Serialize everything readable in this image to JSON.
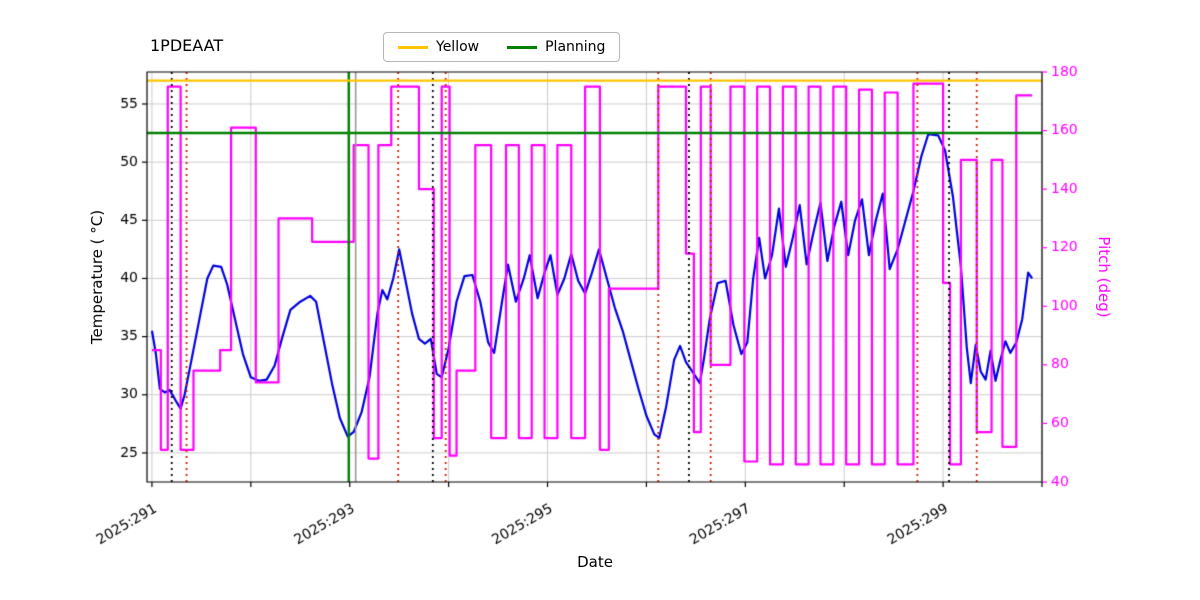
{
  "title": "1PDEAAT",
  "legend": {
    "items": [
      {
        "label": "Yellow",
        "color": "#ffc400"
      },
      {
        "label": "Planning",
        "color": "#008000"
      }
    ]
  },
  "axes": {
    "xlabel": "Date",
    "ylabel_left": "Temperature ( °C)",
    "ylabel_right": "Pitch (deg)"
  },
  "chart_data": {
    "type": "line",
    "title": "1PDEAAT",
    "x_range": [
      290.95,
      300.0
    ],
    "xticks": [
      {
        "value": 291,
        "label": "2025:291"
      },
      {
        "value": 293,
        "label": "2025:293"
      },
      {
        "value": 295,
        "label": "2025:295"
      },
      {
        "value": 297,
        "label": "2025:297"
      },
      {
        "value": 299,
        "label": "2025:299"
      }
    ],
    "x_grid_step": 1,
    "left_axis": {
      "label": "Temperature ( °C)",
      "range": [
        22.5,
        57.75
      ],
      "ticks": [
        25,
        30,
        35,
        40,
        45,
        50,
        55
      ],
      "color": "#000000"
    },
    "right_axis": {
      "label": "Pitch (deg)",
      "range": [
        40,
        180
      ],
      "ticks": [
        40,
        60,
        80,
        100,
        120,
        140,
        160,
        180
      ],
      "color": "#ff00ff"
    },
    "grid_color": "#cccccc",
    "hlines": [
      {
        "y": 57.0,
        "axis": "left",
        "color": "#ffc400",
        "width": 2.2,
        "label": "Yellow"
      },
      {
        "y": 52.5,
        "axis": "left",
        "color": "#008000",
        "width": 2.6,
        "label": "Planning"
      }
    ],
    "vlines": [
      {
        "x": 291.2,
        "color": "#000000",
        "style": "dotted",
        "width": 1.8
      },
      {
        "x": 291.35,
        "color": "#cc2200",
        "style": "dotted",
        "width": 1.8
      },
      {
        "x": 292.99,
        "color": "#008000",
        "style": "solid",
        "width": 2.4
      },
      {
        "x": 293.06,
        "color": "#999999",
        "style": "solid",
        "width": 1.6
      },
      {
        "x": 293.49,
        "color": "#cc2200",
        "style": "dotted",
        "width": 1.8
      },
      {
        "x": 293.84,
        "color": "#000000",
        "style": "dotted",
        "width": 1.8
      },
      {
        "x": 293.97,
        "color": "#cc2200",
        "style": "dotted",
        "width": 1.8
      },
      {
        "x": 296.12,
        "color": "#cc2200",
        "style": "dotted",
        "width": 1.8
      },
      {
        "x": 296.43,
        "color": "#000000",
        "style": "dotted",
        "width": 1.8
      },
      {
        "x": 296.65,
        "color": "#cc2200",
        "style": "dotted",
        "width": 1.8
      },
      {
        "x": 298.74,
        "color": "#cc2200",
        "style": "dotted",
        "width": 1.8
      },
      {
        "x": 299.06,
        "color": "#000000",
        "style": "dotted",
        "width": 1.8
      },
      {
        "x": 299.34,
        "color": "#cc2200",
        "style": "dotted",
        "width": 1.8
      }
    ],
    "series": [
      {
        "name": "Temperature",
        "axis": "left",
        "color": "#0000e0",
        "width": 2.2,
        "points": [
          [
            291.0,
            35.5
          ],
          [
            291.04,
            33.5
          ],
          [
            291.08,
            30.5
          ],
          [
            291.13,
            30.2
          ],
          [
            291.18,
            30.4
          ],
          [
            291.24,
            29.5
          ],
          [
            291.29,
            28.8
          ],
          [
            291.33,
            30.0
          ],
          [
            291.4,
            33.0
          ],
          [
            291.48,
            36.5
          ],
          [
            291.56,
            40.0
          ],
          [
            291.62,
            41.1
          ],
          [
            291.7,
            41.0
          ],
          [
            291.76,
            39.5
          ],
          [
            291.84,
            36.5
          ],
          [
            291.92,
            33.5
          ],
          [
            292.0,
            31.5
          ],
          [
            292.08,
            31.2
          ],
          [
            292.16,
            31.3
          ],
          [
            292.24,
            32.5
          ],
          [
            292.32,
            35.0
          ],
          [
            292.4,
            37.3
          ],
          [
            292.5,
            38.0
          ],
          [
            292.6,
            38.5
          ],
          [
            292.66,
            38.0
          ],
          [
            292.74,
            34.5
          ],
          [
            292.82,
            31.0
          ],
          [
            292.9,
            28.0
          ],
          [
            292.98,
            26.4
          ],
          [
            293.04,
            26.8
          ],
          [
            293.12,
            28.5
          ],
          [
            293.2,
            31.5
          ],
          [
            293.28,
            37.0
          ],
          [
            293.33,
            39.0
          ],
          [
            293.38,
            38.2
          ],
          [
            293.44,
            40.0
          ],
          [
            293.5,
            42.5
          ],
          [
            293.56,
            40.0
          ],
          [
            293.63,
            37.0
          ],
          [
            293.7,
            34.8
          ],
          [
            293.76,
            34.4
          ],
          [
            293.82,
            34.8
          ],
          [
            293.88,
            31.8
          ],
          [
            293.93,
            31.5
          ],
          [
            294.0,
            34.0
          ],
          [
            294.08,
            38.0
          ],
          [
            294.16,
            40.2
          ],
          [
            294.24,
            40.3
          ],
          [
            294.32,
            38.0
          ],
          [
            294.4,
            34.5
          ],
          [
            294.46,
            33.6
          ],
          [
            294.54,
            38.0
          ],
          [
            294.6,
            41.2
          ],
          [
            294.68,
            38.0
          ],
          [
            294.76,
            40.0
          ],
          [
            294.82,
            42.0
          ],
          [
            294.9,
            38.3
          ],
          [
            294.97,
            40.5
          ],
          [
            295.03,
            42.0
          ],
          [
            295.1,
            38.6
          ],
          [
            295.17,
            40.0
          ],
          [
            295.24,
            42.1
          ],
          [
            295.31,
            39.8
          ],
          [
            295.38,
            38.7
          ],
          [
            295.45,
            40.5
          ],
          [
            295.52,
            42.5
          ],
          [
            295.6,
            40.0
          ],
          [
            295.68,
            37.5
          ],
          [
            295.76,
            35.5
          ],
          [
            295.84,
            33.0
          ],
          [
            295.92,
            30.5
          ],
          [
            296.0,
            28.2
          ],
          [
            296.08,
            26.6
          ],
          [
            296.13,
            26.3
          ],
          [
            296.2,
            29.0
          ],
          [
            296.28,
            33.0
          ],
          [
            296.34,
            34.2
          ],
          [
            296.4,
            32.8
          ],
          [
            296.48,
            31.8
          ],
          [
            296.54,
            31.0
          ],
          [
            296.58,
            33.0
          ],
          [
            296.64,
            36.5
          ],
          [
            296.72,
            39.6
          ],
          [
            296.8,
            39.8
          ],
          [
            296.88,
            36.0
          ],
          [
            296.96,
            33.5
          ],
          [
            297.02,
            34.5
          ],
          [
            297.08,
            40.0
          ],
          [
            297.14,
            43.5
          ],
          [
            297.2,
            40.0
          ],
          [
            297.27,
            42.0
          ],
          [
            297.34,
            46.0
          ],
          [
            297.41,
            41.0
          ],
          [
            297.48,
            43.5
          ],
          [
            297.55,
            46.3
          ],
          [
            297.62,
            41.2
          ],
          [
            297.69,
            44.0
          ],
          [
            297.76,
            46.5
          ],
          [
            297.83,
            41.5
          ],
          [
            297.9,
            44.5
          ],
          [
            297.97,
            46.6
          ],
          [
            298.04,
            42.0
          ],
          [
            298.11,
            45.0
          ],
          [
            298.18,
            46.8
          ],
          [
            298.25,
            42.0
          ],
          [
            298.32,
            45.0
          ],
          [
            298.39,
            47.3
          ],
          [
            298.46,
            40.8
          ],
          [
            298.54,
            42.5
          ],
          [
            298.62,
            45.0
          ],
          [
            298.7,
            47.5
          ],
          [
            298.78,
            50.5
          ],
          [
            298.85,
            52.4
          ],
          [
            298.95,
            52.3
          ],
          [
            299.02,
            51.0
          ],
          [
            299.1,
            47.0
          ],
          [
            299.18,
            41.0
          ],
          [
            299.24,
            34.0
          ],
          [
            299.28,
            31.0
          ],
          [
            299.33,
            34.3
          ],
          [
            299.38,
            32.0
          ],
          [
            299.43,
            31.3
          ],
          [
            299.48,
            33.8
          ],
          [
            299.53,
            31.2
          ],
          [
            299.58,
            33.0
          ],
          [
            299.63,
            34.6
          ],
          [
            299.68,
            33.6
          ],
          [
            299.74,
            34.5
          ],
          [
            299.8,
            36.5
          ],
          [
            299.86,
            40.5
          ],
          [
            299.9,
            40.0
          ]
        ]
      },
      {
        "name": "Pitch",
        "axis": "right",
        "color": "#ff00ff",
        "width": 2.2,
        "points": [
          [
            291.0,
            85
          ],
          [
            291.09,
            85
          ],
          [
            291.09,
            51
          ],
          [
            291.16,
            51
          ],
          [
            291.16,
            175
          ],
          [
            291.29,
            175
          ],
          [
            291.29,
            51
          ],
          [
            291.42,
            51
          ],
          [
            291.42,
            78
          ],
          [
            291.69,
            78
          ],
          [
            291.69,
            85
          ],
          [
            291.8,
            85
          ],
          [
            291.8,
            161
          ],
          [
            292.05,
            161
          ],
          [
            292.05,
            74
          ],
          [
            292.28,
            74
          ],
          [
            292.28,
            130
          ],
          [
            292.62,
            130
          ],
          [
            292.62,
            122
          ],
          [
            293.04,
            122
          ],
          [
            293.04,
            155
          ],
          [
            293.19,
            155
          ],
          [
            293.19,
            48
          ],
          [
            293.29,
            48
          ],
          [
            293.29,
            155
          ],
          [
            293.42,
            155
          ],
          [
            293.42,
            175
          ],
          [
            293.7,
            175
          ],
          [
            293.7,
            140
          ],
          [
            293.85,
            140
          ],
          [
            293.85,
            55
          ],
          [
            293.93,
            55
          ],
          [
            293.93,
            175
          ],
          [
            294.01,
            175
          ],
          [
            294.01,
            49
          ],
          [
            294.08,
            49
          ],
          [
            294.08,
            78
          ],
          [
            294.27,
            78
          ],
          [
            294.27,
            155
          ],
          [
            294.43,
            155
          ],
          [
            294.43,
            55
          ],
          [
            294.58,
            55
          ],
          [
            294.58,
            155
          ],
          [
            294.71,
            155
          ],
          [
            294.71,
            55
          ],
          [
            294.84,
            55
          ],
          [
            294.84,
            155
          ],
          [
            294.97,
            155
          ],
          [
            294.97,
            55
          ],
          [
            295.1,
            55
          ],
          [
            295.1,
            155
          ],
          [
            295.24,
            155
          ],
          [
            295.24,
            55
          ],
          [
            295.38,
            55
          ],
          [
            295.38,
            175
          ],
          [
            295.53,
            175
          ],
          [
            295.53,
            51
          ],
          [
            295.62,
            51
          ],
          [
            295.62,
            106
          ],
          [
            296.12,
            106
          ],
          [
            296.12,
            175
          ],
          [
            296.4,
            175
          ],
          [
            296.4,
            118
          ],
          [
            296.48,
            118
          ],
          [
            296.48,
            57
          ],
          [
            296.55,
            57
          ],
          [
            296.55,
            175
          ],
          [
            296.65,
            175
          ],
          [
            296.65,
            80
          ],
          [
            296.85,
            80
          ],
          [
            296.85,
            175
          ],
          [
            296.99,
            175
          ],
          [
            296.99,
            47
          ],
          [
            297.12,
            47
          ],
          [
            297.12,
            175
          ],
          [
            297.25,
            175
          ],
          [
            297.25,
            46
          ],
          [
            297.38,
            46
          ],
          [
            297.38,
            175
          ],
          [
            297.51,
            175
          ],
          [
            297.51,
            46
          ],
          [
            297.64,
            46
          ],
          [
            297.64,
            175
          ],
          [
            297.76,
            175
          ],
          [
            297.76,
            46
          ],
          [
            297.89,
            46
          ],
          [
            297.89,
            175
          ],
          [
            298.02,
            175
          ],
          [
            298.02,
            46
          ],
          [
            298.15,
            46
          ],
          [
            298.15,
            174
          ],
          [
            298.28,
            174
          ],
          [
            298.28,
            46
          ],
          [
            298.41,
            46
          ],
          [
            298.41,
            173
          ],
          [
            298.54,
            173
          ],
          [
            298.54,
            46
          ],
          [
            298.7,
            46
          ],
          [
            298.7,
            176
          ],
          [
            299.0,
            176
          ],
          [
            299.0,
            108
          ],
          [
            299.07,
            108
          ],
          [
            299.07,
            46
          ],
          [
            299.18,
            46
          ],
          [
            299.18,
            150
          ],
          [
            299.34,
            150
          ],
          [
            299.34,
            57
          ],
          [
            299.49,
            57
          ],
          [
            299.49,
            150
          ],
          [
            299.6,
            150
          ],
          [
            299.6,
            52
          ],
          [
            299.74,
            52
          ],
          [
            299.74,
            172
          ],
          [
            299.9,
            172
          ]
        ]
      }
    ]
  }
}
